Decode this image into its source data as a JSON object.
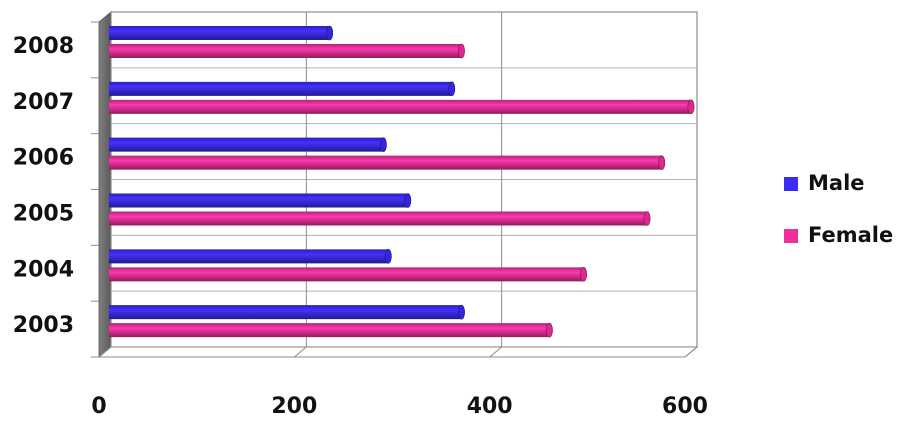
{
  "chart_data": {
    "type": "bar",
    "orientation": "horizontal",
    "style": "3d-cylinder",
    "categories": [
      "2003",
      "2004",
      "2005",
      "2006",
      "2007",
      "2008"
    ],
    "series": [
      {
        "name": "Male",
        "color": "#3b2bf0",
        "values": [
          365,
          290,
          310,
          285,
          355,
          230
        ]
      },
      {
        "name": "Female",
        "color": "#f0309a",
        "values": [
          455,
          490,
          555,
          570,
          600,
          365
        ]
      }
    ],
    "xlim": [
      0,
      600
    ],
    "xticks": [
      "0",
      "200",
      "400",
      "600"
    ],
    "grid": true,
    "legend_position": "right"
  }
}
